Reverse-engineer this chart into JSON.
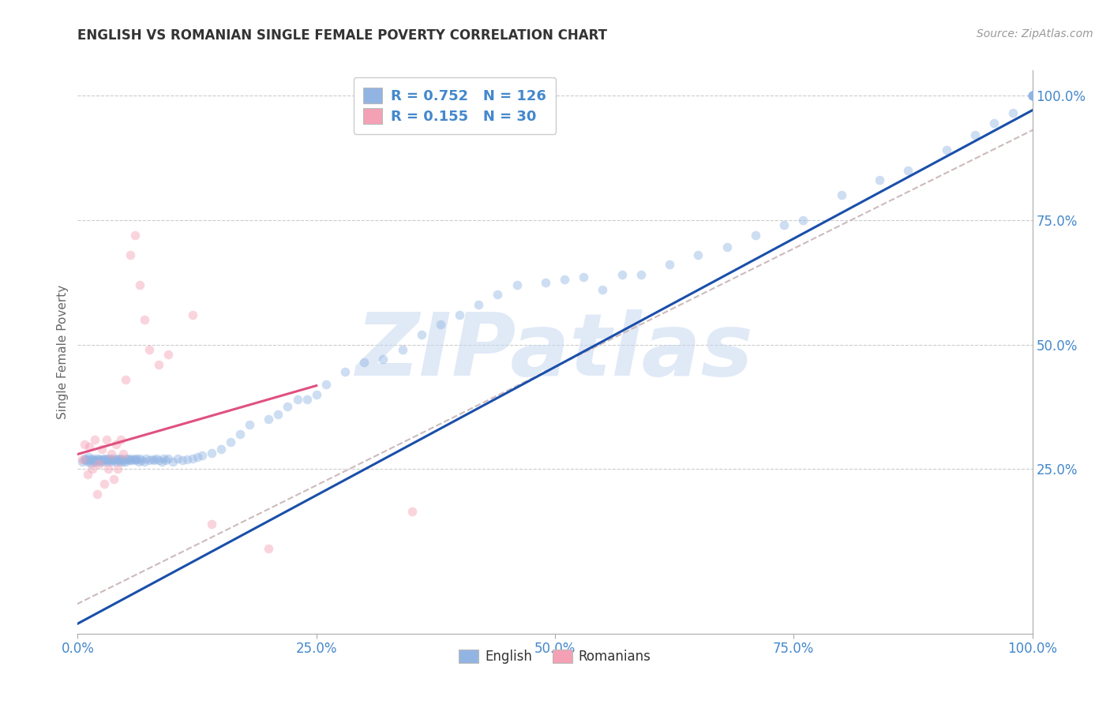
{
  "title": "ENGLISH VS ROMANIAN SINGLE FEMALE POVERTY CORRELATION CHART",
  "source": "Source: ZipAtlas.com",
  "ylabel": "Single Female Poverty",
  "watermark": "ZIPatlas",
  "english_R": 0.752,
  "english_N": 126,
  "romanian_R": 0.155,
  "romanian_N": 30,
  "english_color": "#92b4e3",
  "romanian_color": "#f4a0b5",
  "english_line_color": "#1a4faa",
  "romanian_line_color": "#e05080",
  "regression_line_color": "#ccbbbb",
  "xlim": [
    0.0,
    1.0
  ],
  "ylim": [
    -0.08,
    1.05
  ],
  "xticks": [
    0.0,
    0.25,
    0.5,
    0.75,
    1.0
  ],
  "yticks": [
    0.25,
    0.5,
    0.75,
    1.0
  ],
  "xtick_labels": [
    "0.0%",
    "25.0%",
    "50.0%",
    "75.0%",
    "100.0%"
  ],
  "ytick_labels": [
    "25.0%",
    "50.0%",
    "75.0%",
    "100.0%"
  ],
  "english_line_slope": 1.03,
  "english_line_intercept": -0.06,
  "romanian_line_slope": 0.55,
  "romanian_line_intercept": 0.28,
  "romanian_line_xstart": 0.0,
  "romanian_line_xend": 0.25,
  "overall_line_slope": 0.95,
  "overall_line_intercept": -0.02,
  "grid_color": "#cccccc",
  "bg_color": "#ffffff",
  "title_color": "#333333",
  "axis_label_color": "#666666",
  "tick_color": "#4488cc",
  "watermark_color": "#c8d8f0",
  "legend_text_color": "#4488cc",
  "marker_size": 70,
  "marker_alpha": 0.45,
  "english_x": [
    0.005,
    0.007,
    0.008,
    0.009,
    0.01,
    0.011,
    0.012,
    0.013,
    0.014,
    0.015,
    0.016,
    0.017,
    0.018,
    0.019,
    0.02,
    0.021,
    0.022,
    0.023,
    0.024,
    0.025,
    0.026,
    0.027,
    0.028,
    0.029,
    0.03,
    0.031,
    0.032,
    0.033,
    0.034,
    0.035,
    0.036,
    0.037,
    0.038,
    0.04,
    0.041,
    0.042,
    0.043,
    0.044,
    0.045,
    0.046,
    0.047,
    0.048,
    0.05,
    0.051,
    0.052,
    0.054,
    0.055,
    0.056,
    0.058,
    0.06,
    0.061,
    0.062,
    0.064,
    0.065,
    0.067,
    0.07,
    0.072,
    0.075,
    0.078,
    0.08,
    0.082,
    0.085,
    0.088,
    0.09,
    0.092,
    0.095,
    0.1,
    0.105,
    0.11,
    0.115,
    0.12,
    0.125,
    0.13,
    0.14,
    0.15,
    0.16,
    0.17,
    0.18,
    0.2,
    0.21,
    0.22,
    0.23,
    0.24,
    0.25,
    0.26,
    0.28,
    0.3,
    0.32,
    0.34,
    0.36,
    0.38,
    0.4,
    0.42,
    0.44,
    0.46,
    0.49,
    0.51,
    0.53,
    0.55,
    0.57,
    0.59,
    0.62,
    0.65,
    0.68,
    0.71,
    0.74,
    0.76,
    0.8,
    0.84,
    0.87,
    0.91,
    0.94,
    0.96,
    0.98,
    1.0,
    1.0,
    1.0,
    1.0,
    1.0,
    1.0,
    1.0,
    1.0,
    1.0,
    1.0,
    1.0,
    1.0
  ],
  "english_y": [
    0.265,
    0.27,
    0.272,
    0.268,
    0.265,
    0.275,
    0.268,
    0.27,
    0.262,
    0.272,
    0.268,
    0.265,
    0.27,
    0.268,
    0.265,
    0.272,
    0.27,
    0.268,
    0.265,
    0.27,
    0.268,
    0.265,
    0.272,
    0.27,
    0.268,
    0.265,
    0.272,
    0.27,
    0.268,
    0.265,
    0.272,
    0.27,
    0.268,
    0.265,
    0.272,
    0.27,
    0.268,
    0.265,
    0.272,
    0.27,
    0.268,
    0.265,
    0.265,
    0.272,
    0.27,
    0.268,
    0.272,
    0.268,
    0.27,
    0.268,
    0.272,
    0.27,
    0.265,
    0.272,
    0.268,
    0.265,
    0.272,
    0.268,
    0.27,
    0.268,
    0.272,
    0.268,
    0.265,
    0.272,
    0.268,
    0.272,
    0.265,
    0.272,
    0.268,
    0.27,
    0.272,
    0.275,
    0.278,
    0.282,
    0.29,
    0.305,
    0.32,
    0.34,
    0.35,
    0.36,
    0.375,
    0.39,
    0.39,
    0.4,
    0.42,
    0.445,
    0.465,
    0.47,
    0.49,
    0.52,
    0.54,
    0.56,
    0.58,
    0.6,
    0.62,
    0.625,
    0.63,
    0.635,
    0.61,
    0.64,
    0.64,
    0.66,
    0.68,
    0.695,
    0.72,
    0.74,
    0.75,
    0.8,
    0.83,
    0.85,
    0.89,
    0.92,
    0.945,
    0.965,
    1.0,
    1.0,
    1.0,
    1.0,
    1.0,
    1.0,
    1.0,
    1.0,
    1.0,
    1.0,
    1.0,
    1.0
  ],
  "romanian_x": [
    0.005,
    0.007,
    0.01,
    0.012,
    0.015,
    0.018,
    0.02,
    0.022,
    0.025,
    0.028,
    0.03,
    0.032,
    0.035,
    0.038,
    0.04,
    0.042,
    0.045,
    0.048,
    0.05,
    0.055,
    0.06,
    0.065,
    0.07,
    0.075,
    0.085,
    0.095,
    0.12,
    0.14,
    0.2,
    0.35
  ],
  "romanian_y": [
    0.27,
    0.3,
    0.24,
    0.295,
    0.25,
    0.31,
    0.2,
    0.26,
    0.29,
    0.22,
    0.31,
    0.25,
    0.28,
    0.23,
    0.3,
    0.25,
    0.31,
    0.28,
    0.43,
    0.68,
    0.72,
    0.62,
    0.55,
    0.49,
    0.46,
    0.48,
    0.56,
    0.14,
    0.09,
    0.165
  ]
}
